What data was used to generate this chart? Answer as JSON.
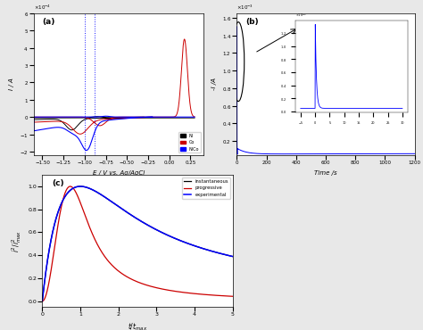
{
  "fig_bg": "#e8e8e8",
  "panel_a": {
    "label": "(a)",
    "xlabel": "E / V vs. Ag/AgCl",
    "ylabel": "I / A",
    "xlim": [
      -1.6,
      0.4
    ],
    "ylim": [
      -0.00022,
      0.0006
    ],
    "legend": [
      "Ni",
      "Co",
      "NiCo"
    ],
    "legend_colors": [
      "black",
      "#cc0000",
      "blue"
    ]
  },
  "panel_b": {
    "label": "(b)",
    "xlabel": "Time /s",
    "ylabel": "-I /A",
    "xlim": [
      0,
      1200
    ],
    "ylim": [
      4e-05,
      0.00165
    ]
  },
  "panel_c": {
    "label": "(c)",
    "xlabel": "t/t_max",
    "ylabel": "i^2/i^2_max",
    "xlim": [
      0,
      5
    ],
    "ylim": [
      -0.05,
      1.1
    ],
    "legend": [
      "instantaneous",
      "progressive",
      "experimental"
    ],
    "legend_colors": [
      "black",
      "#cc0000",
      "blue"
    ]
  }
}
